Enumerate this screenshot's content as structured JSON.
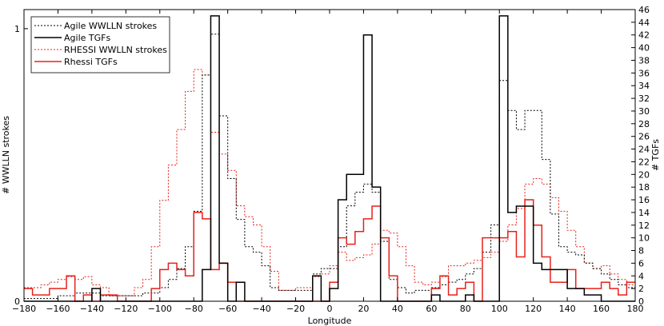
{
  "chart_data": {
    "type": "line",
    "title": "",
    "xlabel": "Longitude",
    "ylabel_left": "# WWLLN strokes",
    "ylabel_right": "# TGFs",
    "xlim": [
      -180,
      180
    ],
    "ylim_left": [
      0,
      1.07
    ],
    "ylim_right": [
      0,
      46
    ],
    "x_ticks": [
      -180,
      -160,
      -140,
      -120,
      -100,
      -80,
      -60,
      -40,
      -20,
      0,
      20,
      40,
      60,
      80,
      100,
      120,
      140,
      160,
      180
    ],
    "y_left_ticks": [
      0,
      1
    ],
    "y_right_ticks": [
      0,
      2,
      4,
      6,
      8,
      10,
      12,
      14,
      16,
      18,
      20,
      22,
      24,
      26,
      28,
      30,
      32,
      34,
      36,
      38,
      40,
      42,
      44,
      46
    ],
    "grid": false,
    "legend_position": "top-left",
    "bin_width": 5,
    "bin_starts": [
      -180,
      -175,
      -170,
      -165,
      -160,
      -155,
      -150,
      -145,
      -140,
      -135,
      -130,
      -125,
      -120,
      -115,
      -110,
      -105,
      -100,
      -95,
      -90,
      -85,
      -80,
      -75,
      -70,
      -65,
      -60,
      -55,
      -50,
      -45,
      -40,
      -35,
      -30,
      -25,
      -20,
      -15,
      -10,
      -5,
      0,
      5,
      10,
      15,
      20,
      25,
      30,
      35,
      40,
      45,
      50,
      55,
      60,
      65,
      70,
      75,
      80,
      85,
      90,
      95,
      100,
      105,
      110,
      115,
      120,
      125,
      130,
      135,
      140,
      145,
      150,
      155,
      160,
      165,
      170,
      175
    ],
    "series": [
      {
        "name": "Agile WWLLN strokes",
        "axis": "left",
        "color": "#000000",
        "dash": "dotted",
        "values": [
          0.01,
          0.01,
          0.01,
          0.01,
          0.02,
          0.02,
          0.03,
          0.03,
          0.03,
          0.02,
          0.02,
          0.02,
          0.02,
          0.02,
          0.03,
          0.03,
          0.05,
          0.08,
          0.12,
          0.2,
          0.33,
          0.83,
          0.98,
          0.68,
          0.45,
          0.3,
          0.2,
          0.18,
          0.13,
          0.05,
          0.04,
          0.04,
          0.04,
          0.04,
          0.1,
          0.12,
          0.12,
          0.2,
          0.35,
          0.4,
          0.43,
          0.4,
          0.22,
          0.08,
          0.05,
          0.03,
          0.04,
          0.04,
          0.05,
          0.06,
          0.07,
          0.08,
          0.1,
          0.12,
          0.18,
          0.28,
          0.81,
          0.7,
          0.63,
          0.7,
          0.7,
          0.52,
          0.32,
          0.2,
          0.18,
          0.17,
          0.14,
          0.12,
          0.1,
          0.08,
          0.06,
          0.05
        ]
      },
      {
        "name": "Agile TGFs",
        "axis": "right",
        "color": "#000000",
        "dash": "solid",
        "values": [
          0,
          0,
          0,
          0,
          0,
          0,
          0,
          0,
          2,
          0,
          0,
          0,
          0,
          0,
          0,
          0,
          0,
          0,
          0,
          0,
          0,
          5,
          45,
          6,
          0,
          3,
          0,
          0,
          0,
          0,
          0,
          0,
          0,
          0,
          4,
          0,
          2,
          16,
          20,
          20,
          42,
          18,
          0,
          0,
          0,
          0,
          0,
          0,
          1,
          0,
          0,
          0,
          1,
          0,
          0,
          0,
          45,
          14,
          15,
          15,
          6,
          5,
          5,
          5,
          2,
          2,
          1,
          1,
          0,
          0,
          0,
          0
        ]
      },
      {
        "name": "RHESSI WWLLN strokes",
        "axis": "left",
        "color": "#e8201a",
        "dash": "dotted",
        "values": [
          0.05,
          0.05,
          0.06,
          0.07,
          0.08,
          0.09,
          0.08,
          0.09,
          0.06,
          0.05,
          0.02,
          0.02,
          0.02,
          0.05,
          0.08,
          0.2,
          0.37,
          0.5,
          0.63,
          0.77,
          0.85,
          0.83,
          0.62,
          0.54,
          0.48,
          0.35,
          0.31,
          0.28,
          0.2,
          0.11,
          0.04,
          0.04,
          0.05,
          0.05,
          0.09,
          0.1,
          0.13,
          0.18,
          0.15,
          0.16,
          0.17,
          0.21,
          0.26,
          0.25,
          0.2,
          0.13,
          0.07,
          0.06,
          0.07,
          0.09,
          0.13,
          0.13,
          0.14,
          0.15,
          0.16,
          0.18,
          0.22,
          0.28,
          0.34,
          0.43,
          0.45,
          0.43,
          0.38,
          0.33,
          0.26,
          0.2,
          0.14,
          0.12,
          0.13,
          0.1,
          0.08,
          0.06
        ]
      },
      {
        "name": "Rhessi TGFs",
        "axis": "right",
        "color": "#e8201a",
        "dash": "solid",
        "values": [
          2,
          1,
          1,
          2,
          2,
          4,
          0,
          1,
          0,
          1,
          1,
          0,
          0,
          0,
          0,
          2,
          5,
          6,
          5,
          4,
          14,
          13,
          5,
          6,
          3,
          0,
          0,
          0,
          0,
          0,
          0,
          0,
          0,
          0,
          0,
          0,
          3,
          10,
          9,
          11,
          13,
          15,
          10,
          4,
          0,
          0,
          0,
          0,
          2,
          4,
          1,
          2,
          3,
          0,
          10,
          10,
          10,
          11,
          7,
          16,
          12,
          7,
          3,
          3,
          5,
          2,
          2,
          2,
          3,
          2,
          1,
          3
        ]
      }
    ]
  }
}
